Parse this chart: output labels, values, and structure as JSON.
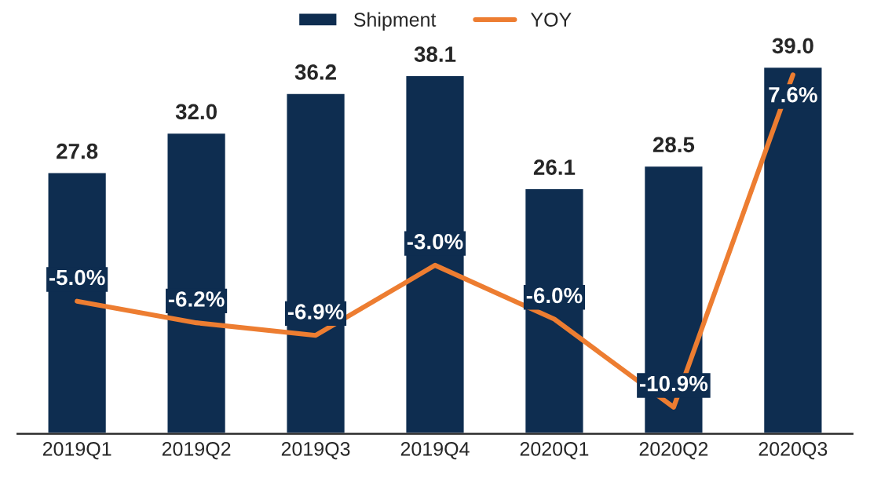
{
  "chart_data": {
    "type": "bar",
    "categories": [
      "2019Q1",
      "2019Q2",
      "2019Q3",
      "2019Q4",
      "2020Q1",
      "2020Q2",
      "2020Q3"
    ],
    "series": [
      {
        "name": "Shipment",
        "type": "bar",
        "color": "#0e2d50",
        "values": [
          27.8,
          32.0,
          36.2,
          38.1,
          26.1,
          28.5,
          39.0
        ],
        "value_labels": [
          "27.8",
          "32.0",
          "36.2",
          "38.1",
          "26.1",
          "28.5",
          "39.0"
        ]
      },
      {
        "name": "YOY",
        "type": "line",
        "axis": "y2",
        "color": "#ed7d31",
        "values": [
          -5.0,
          -6.2,
          -6.9,
          -3.0,
          -6.0,
          -10.9,
          7.6
        ],
        "value_labels": [
          "-5.0%",
          "-6.2%",
          "-6.9%",
          "-3.0%",
          "-6.0%",
          "-10.9%",
          "7.6%"
        ]
      }
    ],
    "legend": "top",
    "tick_labels": "x",
    "grid": false
  }
}
